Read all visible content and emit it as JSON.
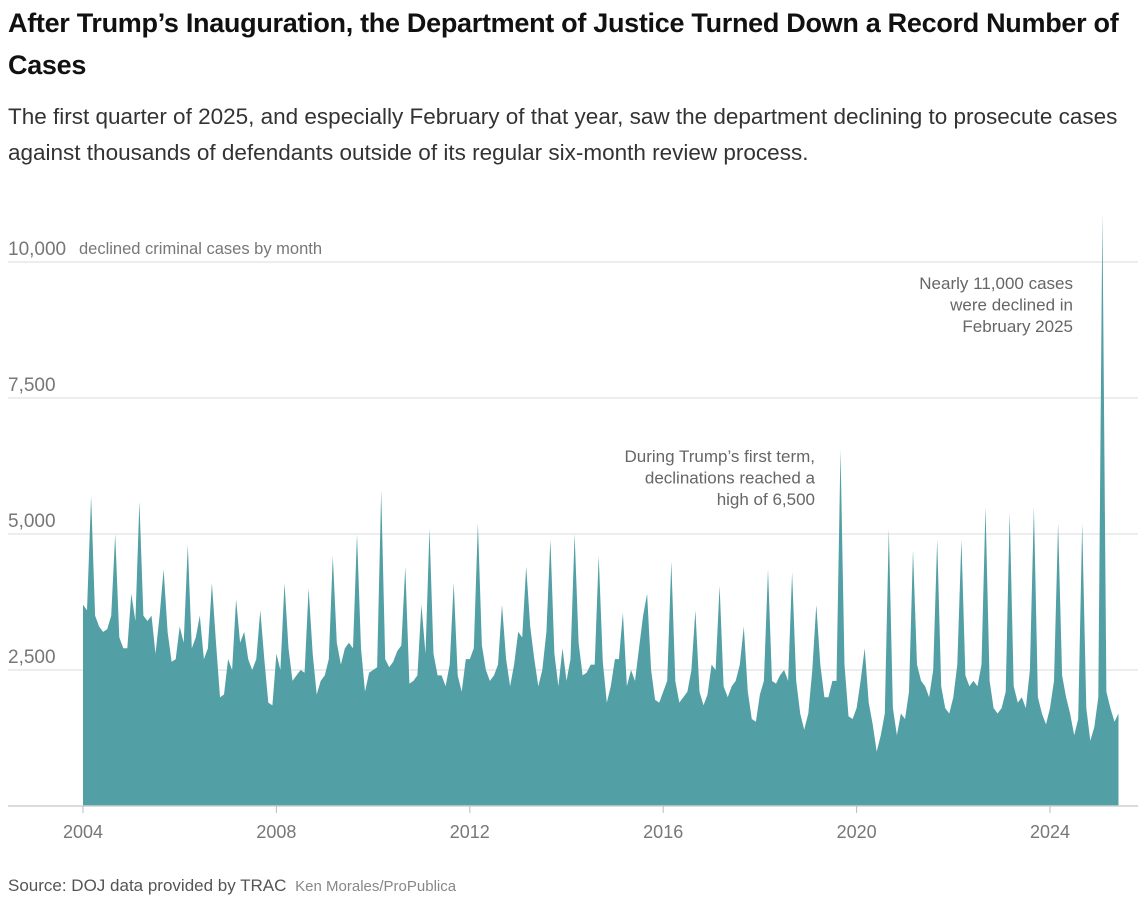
{
  "header": {
    "title": "After Trump’s Inauguration, the Department of Justice Turned Down a Record Number of Cases",
    "subtitle": "The first quarter of 2025, and especially February of that year, saw the department declining to prosecute cases against thousands of defendants outside of its regular six-month review process."
  },
  "chart_data": {
    "type": "area",
    "title": "",
    "ylabel": "declined criminal cases by month",
    "xlabel": "",
    "ylim": [
      0,
      10000
    ],
    "y_ticks": [
      "2,500",
      "5,000",
      "7,500",
      "10,000"
    ],
    "y_tick_values": [
      2500,
      5000,
      7500,
      10000
    ],
    "x_ticks": [
      "2004",
      "2008",
      "2012",
      "2016",
      "2020",
      "2024"
    ],
    "x_tick_values": [
      2004,
      2008,
      2012,
      2016,
      2020,
      2024
    ],
    "grid": true,
    "color": "#52a0a5",
    "start": "2004-01",
    "frequency": "monthly",
    "values": [
      3700,
      3600,
      5700,
      3500,
      3300,
      3200,
      3250,
      3500,
      5000,
      3100,
      2900,
      2900,
      3900,
      3400,
      5600,
      3500,
      3400,
      3500,
      2800,
      3500,
      4350,
      3200,
      2650,
      2700,
      3300,
      3000,
      4800,
      2900,
      3100,
      3500,
      2700,
      2900,
      4100,
      3000,
      2000,
      2050,
      2700,
      2500,
      3800,
      3000,
      3200,
      2700,
      2500,
      2700,
      3600,
      2700,
      1900,
      1850,
      2800,
      2500,
      4100,
      2900,
      2300,
      2400,
      2500,
      2450,
      4000,
      2800,
      2050,
      2300,
      2400,
      2700,
      4600,
      3000,
      2600,
      2900,
      3000,
      2900,
      5000,
      2900,
      2100,
      2450,
      2500,
      2550,
      5800,
      2700,
      2550,
      2650,
      2850,
      2950,
      4400,
      2250,
      2300,
      2400,
      3700,
      2800,
      5100,
      2800,
      2400,
      2400,
      2200,
      2600,
      4100,
      2400,
      2100,
      2700,
      2700,
      2900,
      5200,
      2950,
      2500,
      2300,
      2400,
      2600,
      3700,
      2700,
      2200,
      2600,
      3200,
      3100,
      4400,
      3300,
      2700,
      2200,
      2500,
      3200,
      4900,
      2800,
      2200,
      2900,
      2300,
      2700,
      5000,
      3000,
      2400,
      2450,
      2600,
      2600,
      4600,
      2650,
      1900,
      2200,
      2700,
      2700,
      3550,
      2200,
      2500,
      2300,
      2900,
      3500,
      3900,
      2500,
      1950,
      1900,
      2100,
      2300,
      4500,
      2300,
      1900,
      2000,
      2100,
      2500,
      3600,
      2100,
      1850,
      2050,
      2600,
      2500,
      4050,
      2200,
      2000,
      2200,
      2300,
      2600,
      3300,
      2100,
      1600,
      1550,
      2050,
      2300,
      4350,
      2300,
      2250,
      2400,
      2500,
      2300,
      4300,
      2300,
      1700,
      1400,
      1700,
      2500,
      3700,
      2600,
      2000,
      2000,
      2300,
      2300,
      6550,
      2600,
      1650,
      1600,
      1800,
      2300,
      2900,
      1900,
      1500,
      1000,
      1300,
      1700,
      5100,
      1800,
      1300,
      1700,
      1600,
      2100,
      4700,
      2600,
      2300,
      2200,
      2000,
      2500,
      4900,
      2200,
      1800,
      1700,
      2000,
      2600,
      4900,
      2400,
      2200,
      2300,
      2200,
      2600,
      5500,
      2300,
      1800,
      1700,
      1800,
      2100,
      5400,
      2200,
      1900,
      2000,
      1800,
      2500,
      5500,
      2000,
      1700,
      1500,
      1800,
      2300,
      5200,
      2400,
      2000,
      1700,
      1300,
      1600,
      5200,
      1800,
      1200,
      1450,
      2000,
      10900,
      2100,
      1800,
      1550,
      1700
    ],
    "annotations": [
      {
        "lines": [
          "During Trump’s first term,",
          "declinations reached a",
          "high of 6,500"
        ],
        "x": "2019-09",
        "y": 6550
      },
      {
        "lines": [
          "Nearly 11,000 cases",
          "were declined in",
          "February 2025"
        ],
        "x": "2025-02",
        "y": 10900
      }
    ]
  },
  "footer": {
    "source": "Source: DOJ data provided by TRAC",
    "credit": "Ken Morales/ProPublica"
  }
}
